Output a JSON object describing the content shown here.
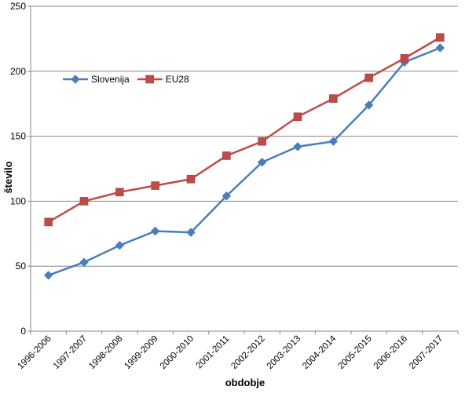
{
  "chart_data": {
    "type": "line",
    "title": "",
    "xlabel": "obdobje",
    "ylabel": "število",
    "ylim": [
      0,
      250
    ],
    "yticks": [
      0,
      50,
      100,
      150,
      200,
      250
    ],
    "grid": true,
    "legend_position": "top-left",
    "categories": [
      "1996-2006",
      "1997-2007",
      "1998-2008",
      "1999-2009",
      "2000-2010",
      "2001-2011",
      "2002-2012",
      "2003-2013",
      "2004-2014",
      "2005-2015",
      "2006-2016",
      "2007-2017"
    ],
    "series": [
      {
        "name": "Slovenija",
        "color": "#4a7ebb",
        "marker": "diamond",
        "values": [
          43,
          53,
          66,
          77,
          76,
          104,
          130,
          142,
          146,
          174,
          207,
          218
        ]
      },
      {
        "name": "EU28",
        "color": "#be4b48",
        "marker": "square",
        "values": [
          84,
          100,
          107,
          112,
          117,
          135,
          146,
          165,
          179,
          195,
          210,
          226
        ]
      }
    ]
  }
}
